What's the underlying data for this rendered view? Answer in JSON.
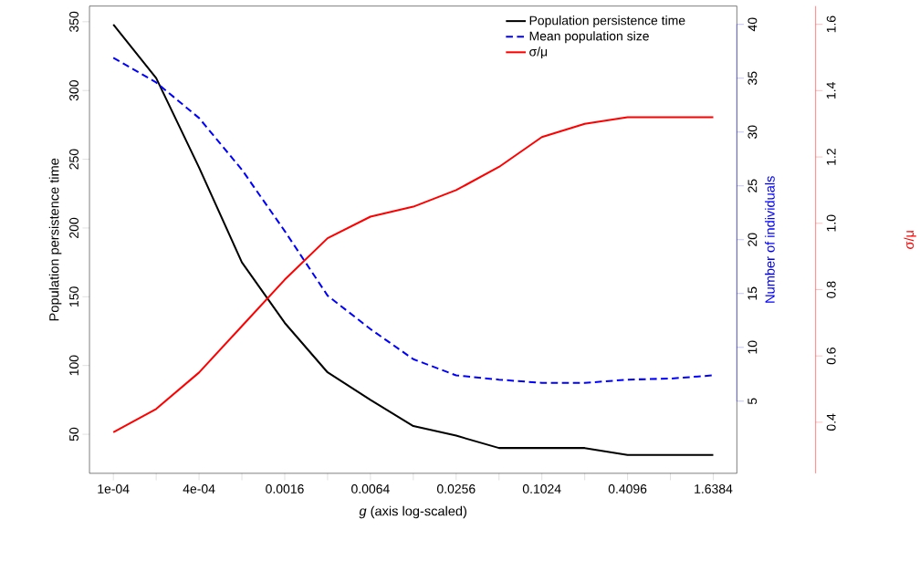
{
  "chart_data": {
    "type": "line",
    "xlabel": "*g* (axis log-scaled)",
    "ylabel": "Population persistence time",
    "y2label": "Number of individuals",
    "y3label": "σ/μ",
    "x": [
      0.0001,
      0.0002,
      0.0004,
      0.0008,
      0.0016,
      0.0032,
      0.0064,
      0.0128,
      0.0256,
      0.0512,
      0.1024,
      0.2048,
      0.4096,
      0.8192,
      1.6384
    ],
    "log": "x",
    "legend": "top right",
    "marker": "none",
    "xlim": [
      6.8e-05,
      2.4
    ],
    "xticks": [
      {
        "value": 0.0001,
        "label": "1e-04"
      },
      {
        "value": 0.0002,
        "label": null
      },
      {
        "value": 0.0004,
        "label": "4e-04"
      },
      {
        "value": 0.0008,
        "label": null
      },
      {
        "value": 0.0016,
        "label": "0.0016"
      },
      {
        "value": 0.0032,
        "label": null
      },
      {
        "value": 0.0064,
        "label": "0.0064"
      },
      {
        "value": 0.0128,
        "label": null
      },
      {
        "value": 0.0256,
        "label": "0.0256"
      },
      {
        "value": 0.0512,
        "label": null
      },
      {
        "value": 0.1024,
        "label": "0.1024"
      },
      {
        "value": 0.2048,
        "label": null
      },
      {
        "value": 0.4096,
        "label": "0.4096"
      },
      {
        "value": 0.8192,
        "label": null
      },
      {
        "value": 1.6384,
        "label": "1.6384"
      }
    ],
    "ylim": [
      21.6,
      361.4
    ],
    "yticks": [
      50,
      100,
      150,
      200,
      250,
      300,
      350
    ],
    "y2lim": [
      -1.7,
      41.7
    ],
    "y2ticks": [
      5,
      10,
      15,
      20,
      25,
      30,
      35,
      40
    ],
    "y3lim": [
      0.246,
      1.655
    ],
    "y3ticks": [
      0.4,
      0.6,
      0.8,
      {
        "value": 1,
        "label": "1.0"
      },
      1.2,
      1.4,
      1.6
    ],
    "series": [
      {
        "name": "Population persistence time",
        "color": "#000000",
        "line_style": "solid",
        "axis": "y",
        "values": [
          348,
          309,
          244,
          175,
          131,
          95,
          75,
          56,
          49,
          40,
          40,
          40,
          35,
          35,
          35
        ]
      },
      {
        "name": "Mean population size",
        "color": "#0000ff",
        "line_style": "dashed",
        "axis": "y2",
        "values": [
          36.9,
          34.6,
          31.3,
          26.5,
          20.8,
          14.8,
          11.7,
          8.9,
          7.4,
          7.0,
          6.7,
          6.7,
          7.0,
          7.1,
          7.4
        ]
      },
      {
        "name": "σ/μ",
        "color": "#ff0000",
        "line_style": "solid",
        "axis": "y3",
        "values": [
          0.37,
          0.44,
          0.55,
          0.69,
          0.83,
          0.955,
          1.02,
          1.05,
          1.1,
          1.17,
          1.26,
          1.3,
          1.32,
          1.32,
          1.32
        ]
      }
    ]
  }
}
